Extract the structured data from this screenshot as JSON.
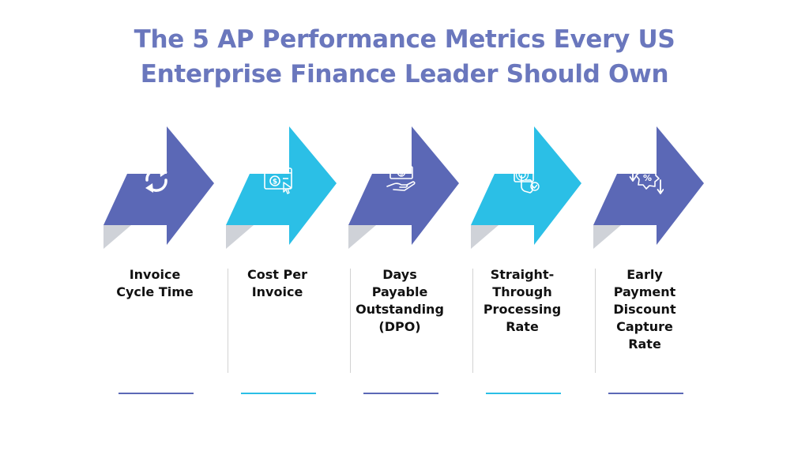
{
  "title": {
    "line1": "The 5 AP Performance Metrics Every US",
    "line2": "Enterprise Finance Leader Should Own"
  },
  "colors": {
    "title": "#6a77bd",
    "primary": "#5b68b6",
    "accent": "#2bbfe6",
    "shadow": "#cfd2d8",
    "divider": "#d2d2d2",
    "label_text": "#111111"
  },
  "metrics": [
    {
      "label_lines": [
        "Invoice",
        "Cycle Time"
      ],
      "icon": "refresh-cycle-icon",
      "arrow_color": "#5b68b6"
    },
    {
      "label_lines": [
        "Cost Per",
        "Invoice"
      ],
      "icon": "dollar-browser-click-icon",
      "arrow_color": "#2bbfe6"
    },
    {
      "label_lines": [
        "Days",
        "Payable",
        "Outstanding",
        "(DPO)"
      ],
      "icon": "hand-money-icon",
      "arrow_color": "#5b68b6"
    },
    {
      "label_lines": [
        "Straight-",
        "Through",
        "Processing",
        "Rate"
      ],
      "icon": "touch-automation-icon",
      "arrow_color": "#2bbfe6"
    },
    {
      "label_lines": [
        "Early",
        "Payment",
        "Discount",
        "Capture",
        "Rate"
      ],
      "icon": "percent-discount-arrows-icon",
      "arrow_color": "#5b68b6"
    }
  ]
}
